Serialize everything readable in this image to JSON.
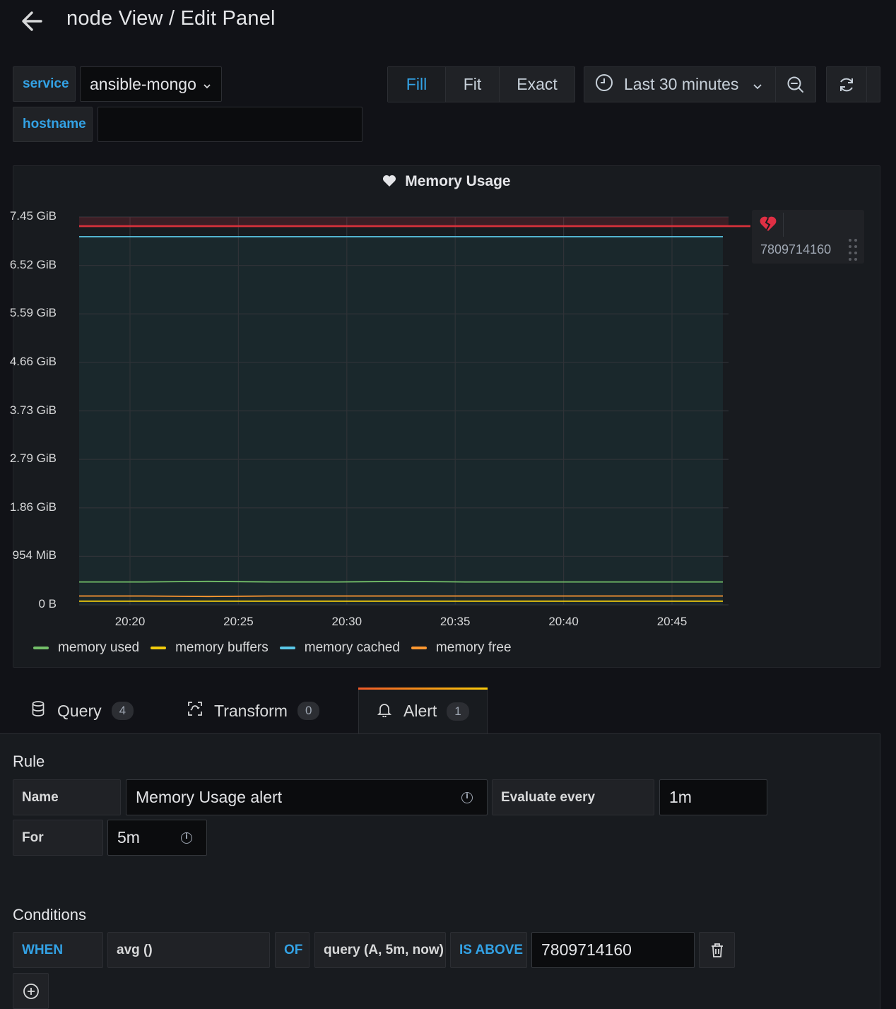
{
  "header": {
    "title": "node View / Edit Panel"
  },
  "variables": [
    {
      "label": "service",
      "value": "ansible-mongo"
    },
    {
      "label": "hostname",
      "value": ""
    }
  ],
  "toolbar": {
    "modes": [
      "Fill",
      "Fit",
      "Exact"
    ],
    "active_mode": "Fill",
    "time_range": "Last 30 minutes"
  },
  "panel": {
    "title": "Memory Usage",
    "threshold_badge": "7809714160",
    "legend": [
      {
        "name": "memory used",
        "color": "#73bf69"
      },
      {
        "name": "memory buffers",
        "color": "#f2cc0c"
      },
      {
        "name": "memory cached",
        "color": "#5ac8e8"
      },
      {
        "name": "memory free",
        "color": "#ff9830"
      }
    ]
  },
  "chart_data": {
    "type": "line",
    "title": "Memory Usage",
    "y_ticks": [
      "7.45 GiB",
      "6.52 GiB",
      "5.59 GiB",
      "4.66 GiB",
      "3.73 GiB",
      "2.79 GiB",
      "1.86 GiB",
      "954 MiB",
      "0 B"
    ],
    "x_ticks": [
      "20:20",
      "20:25",
      "20:30",
      "20:35",
      "20:40",
      "20:45"
    ],
    "ylim_gib": [
      0,
      7.45
    ],
    "threshold": 7809714160,
    "series": [
      {
        "name": "memory used",
        "color": "#73bf69",
        "values_gib": [
          0.44,
          0.44,
          0.45,
          0.44,
          0.44,
          0.45,
          0.44,
          0.44,
          0.44,
          0.44,
          0.44
        ]
      },
      {
        "name": "memory buffers",
        "color": "#f2cc0c",
        "values_gib": [
          0.07,
          0.07,
          0.07,
          0.07,
          0.07,
          0.07,
          0.07,
          0.07,
          0.07,
          0.07,
          0.07
        ]
      },
      {
        "name": "memory cached",
        "color": "#5ac8e8",
        "values_gib": [
          7.07,
          7.07,
          7.07,
          7.07,
          7.07,
          7.07,
          7.07,
          7.07,
          7.07,
          7.07,
          7.07
        ]
      },
      {
        "name": "memory free",
        "color": "#ff9830",
        "values_gib": [
          0.17,
          0.17,
          0.16,
          0.17,
          0.17,
          0.17,
          0.17,
          0.17,
          0.17,
          0.17,
          0.17
        ]
      }
    ],
    "grid": true,
    "legend_position": "bottom"
  },
  "tabs": [
    {
      "label": "Query",
      "count": "4"
    },
    {
      "label": "Transform",
      "count": "0"
    },
    {
      "label": "Alert",
      "count": "1"
    }
  ],
  "alert": {
    "rule_heading": "Rule",
    "name_label": "Name",
    "name_value": "Memory Usage alert",
    "evaluate_label": "Evaluate every",
    "evaluate_value": "1m",
    "for_label": "For",
    "for_value": "5m",
    "conditions_heading": "Conditions",
    "when": "WHEN",
    "reducer": "avg ()",
    "of": "OF",
    "query": "query (A, 5m, now)",
    "evaluator": "IS ABOVE",
    "threshold": "7809714160"
  }
}
